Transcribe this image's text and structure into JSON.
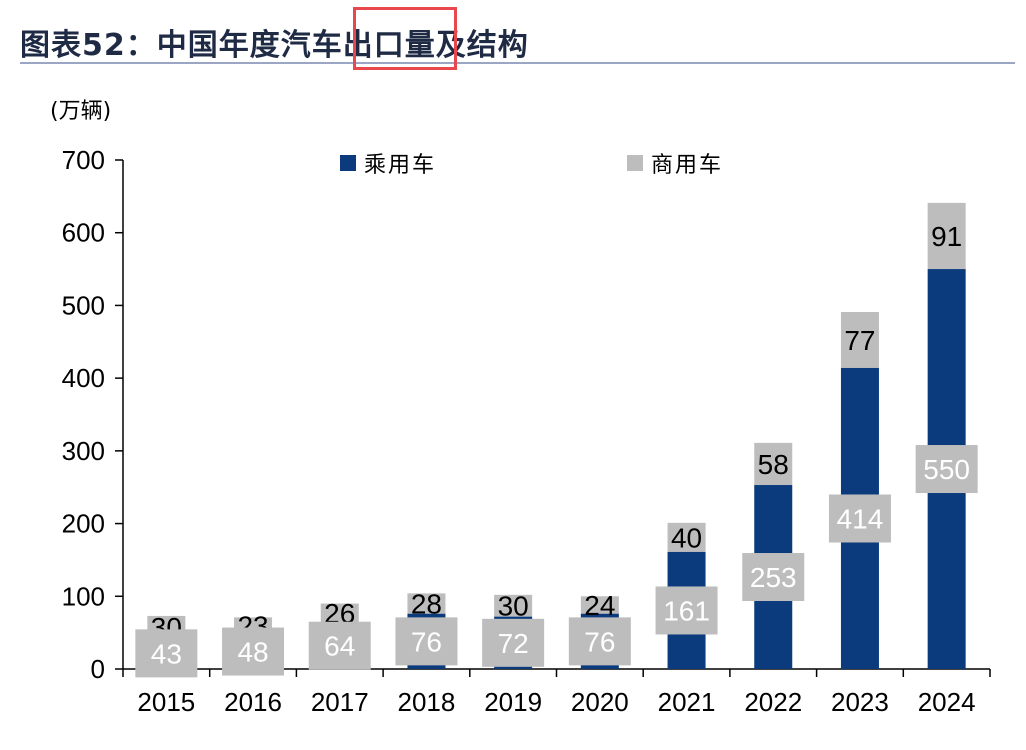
{
  "header": {
    "title": "图表52：中国年度汽车出口量及结构"
  },
  "colors": {
    "passenger": "#0b3a7d",
    "commercial": "#bdbdbd",
    "highlight": "#e8474c"
  },
  "chart_data": {
    "type": "bar",
    "stacked": true,
    "categories": [
      "2015",
      "2016",
      "2017",
      "2018",
      "2019",
      "2020",
      "2021",
      "2022",
      "2023",
      "2024"
    ],
    "series": [
      {
        "name": "乘用车",
        "values": [
          43,
          48,
          64,
          76,
          72,
          76,
          161,
          253,
          414,
          550
        ]
      },
      {
        "name": "商用车",
        "values": [
          30,
          23,
          26,
          28,
          30,
          24,
          40,
          58,
          77,
          91
        ]
      }
    ],
    "unit_label": "(万辆)",
    "ylim": [
      0,
      700
    ],
    "yticks": [
      0,
      100,
      200,
      300,
      400,
      500,
      600,
      700
    ],
    "legend_position": "top",
    "grid": false
  }
}
